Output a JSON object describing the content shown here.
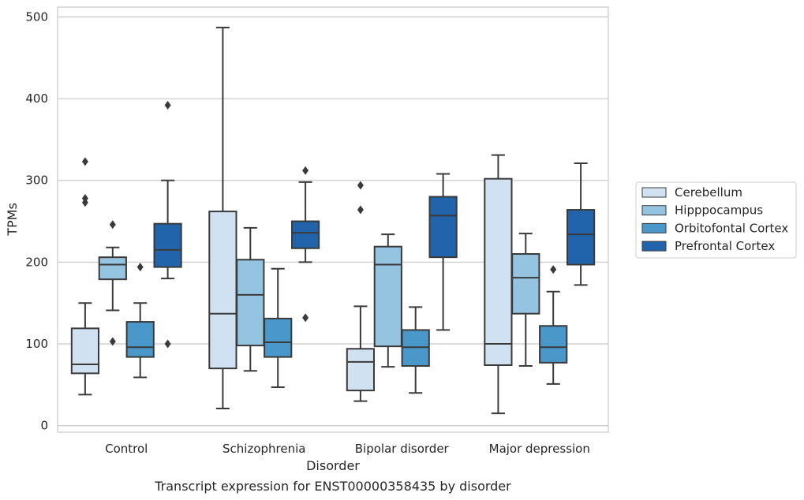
{
  "caption": "Transcript expression for ENST00000358435 by disorder",
  "chart_data": {
    "type": "box",
    "xlabel": "Disorder",
    "ylabel": "TPMs",
    "ylim": [
      -8,
      512
    ],
    "yticks": [
      0,
      100,
      200,
      300,
      400,
      500
    ],
    "grid": "horizontal",
    "legend_position": "right",
    "categories": [
      "Control",
      "Schizophrenia",
      "Bipolar disorder",
      "Major depression"
    ],
    "series": [
      {
        "name": "Cerebellum",
        "color": "#d0e1f2",
        "boxes": [
          {
            "whisker_low": 38,
            "q1": 64,
            "median": 75,
            "q3": 119,
            "whisker_high": 150,
            "outliers": [
              273,
              278,
              323
            ]
          },
          {
            "whisker_low": 21,
            "q1": 70,
            "median": 137,
            "q3": 262,
            "whisker_high": 487,
            "outliers": []
          },
          {
            "whisker_low": 30,
            "q1": 43,
            "median": 78,
            "q3": 94,
            "whisker_high": 146,
            "outliers": [
              264,
              294
            ]
          },
          {
            "whisker_low": 15,
            "q1": 74,
            "median": 100,
            "q3": 302,
            "whisker_high": 331,
            "outliers": []
          }
        ]
      },
      {
        "name": "Hipppocampus",
        "color": "#94c4df",
        "boxes": [
          {
            "whisker_low": 141,
            "q1": 179,
            "median": 197,
            "q3": 206,
            "whisker_high": 218,
            "outliers": [
              103,
              246
            ]
          },
          {
            "whisker_low": 67,
            "q1": 98,
            "median": 160,
            "q3": 203,
            "whisker_high": 242,
            "outliers": []
          },
          {
            "whisker_low": 72,
            "q1": 97,
            "median": 197,
            "q3": 219,
            "whisker_high": 234,
            "outliers": []
          },
          {
            "whisker_low": 73,
            "q1": 137,
            "median": 181,
            "q3": 210,
            "whisker_high": 235,
            "outliers": []
          }
        ]
      },
      {
        "name": "Orbitofontal Cortex",
        "color": "#4a98c9",
        "boxes": [
          {
            "whisker_low": 59,
            "q1": 84,
            "median": 96,
            "q3": 127,
            "whisker_high": 150,
            "outliers": [
              194
            ]
          },
          {
            "whisker_low": 47,
            "q1": 84,
            "median": 102,
            "q3": 131,
            "whisker_high": 192,
            "outliers": []
          },
          {
            "whisker_low": 40,
            "q1": 73,
            "median": 96,
            "q3": 117,
            "whisker_high": 145,
            "outliers": []
          },
          {
            "whisker_low": 51,
            "q1": 77,
            "median": 96,
            "q3": 122,
            "whisker_high": 164,
            "outliers": [
              191
            ]
          }
        ]
      },
      {
        "name": "Prefrontal Cortex",
        "color": "#2164ab",
        "boxes": [
          {
            "whisker_low": 180,
            "q1": 194,
            "median": 215,
            "q3": 247,
            "whisker_high": 300,
            "outliers": [
              100,
              392
            ]
          },
          {
            "whisker_low": 200,
            "q1": 217,
            "median": 236,
            "q3": 250,
            "whisker_high": 298,
            "outliers": [
              132,
              312
            ]
          },
          {
            "whisker_low": 117,
            "q1": 206,
            "median": 257,
            "q3": 280,
            "whisker_high": 308,
            "outliers": []
          },
          {
            "whisker_low": 172,
            "q1": 197,
            "median": 234,
            "q3": 264,
            "whisker_high": 321,
            "outliers": []
          }
        ]
      }
    ]
  }
}
